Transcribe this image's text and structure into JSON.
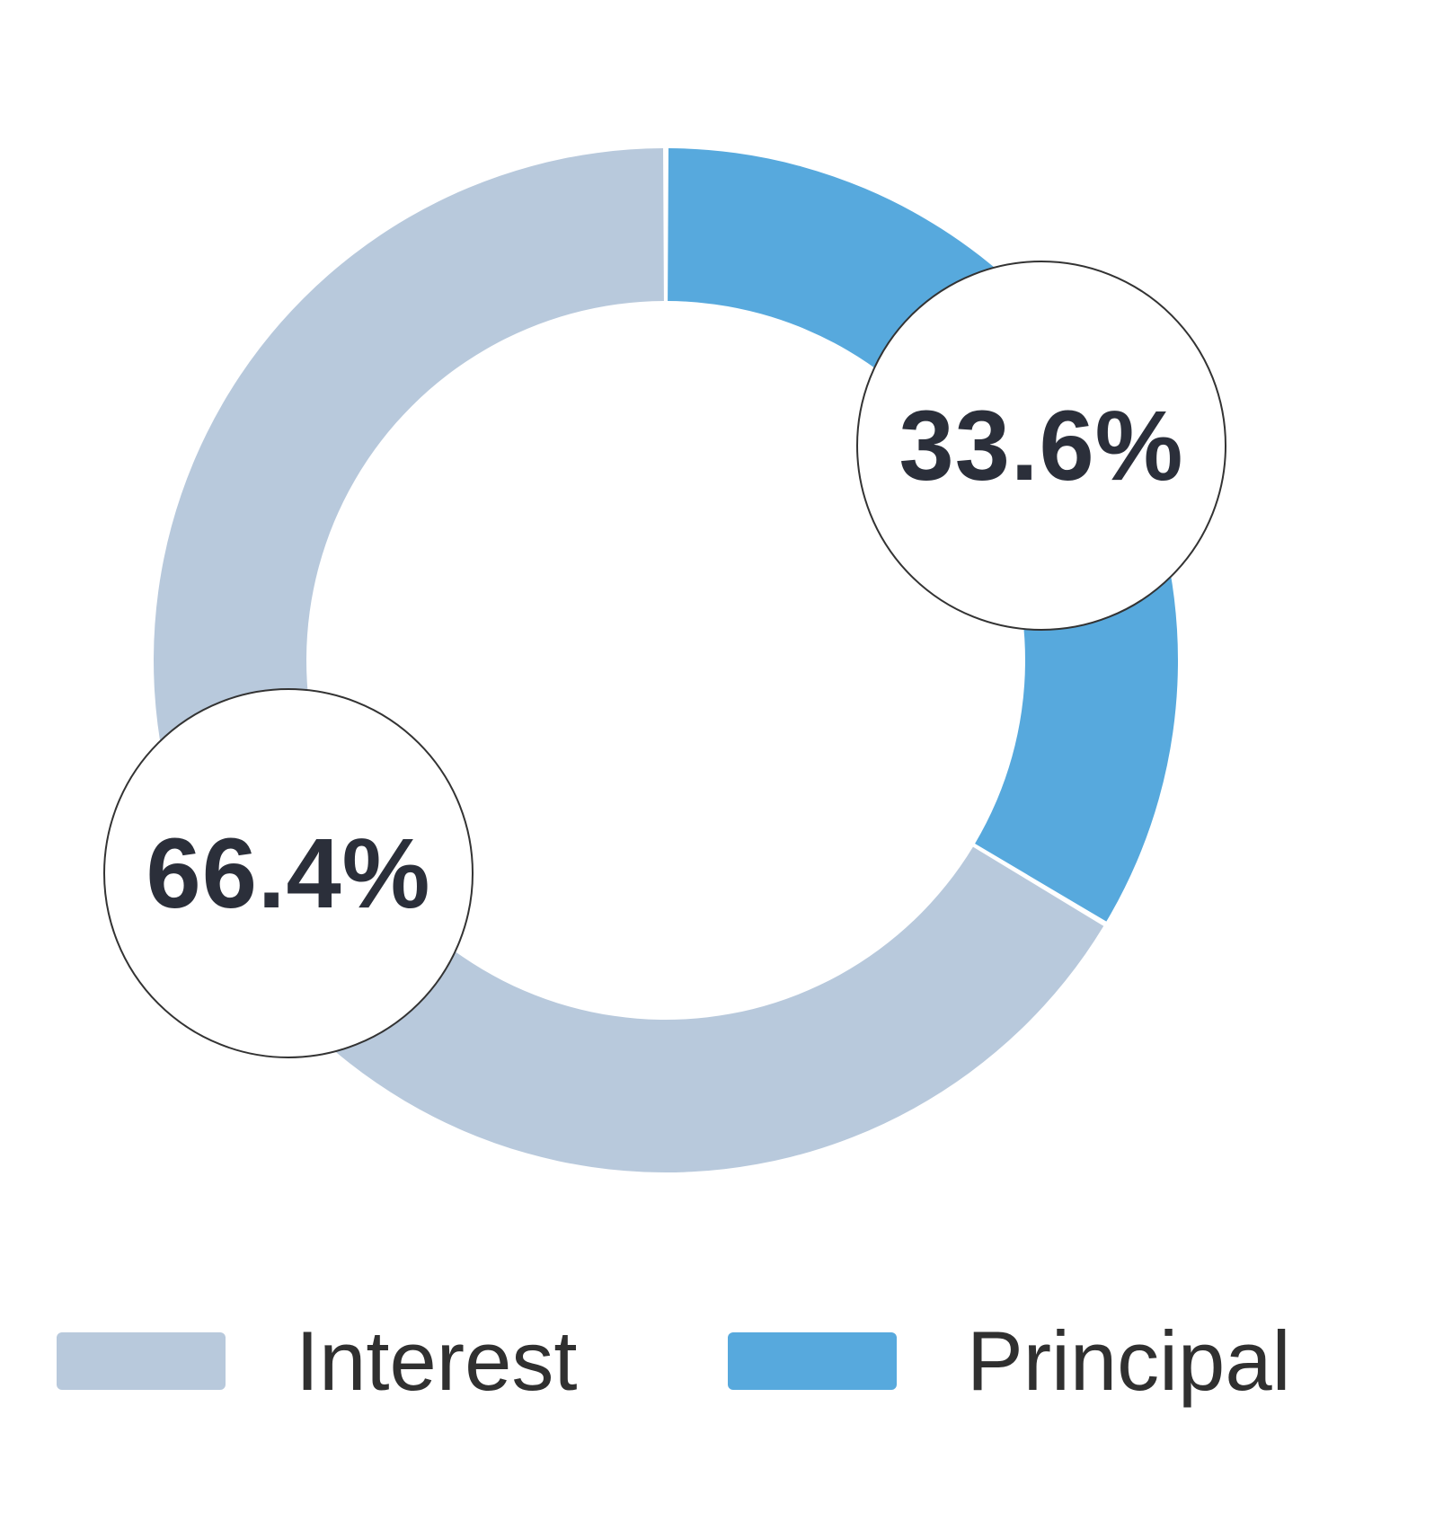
{
  "chart_data": {
    "type": "pie",
    "subtype": "donut",
    "title": "",
    "slices": [
      {
        "label": "Interest",
        "value": 66.4,
        "display": "66.4%",
        "color": "#b8c9dc"
      },
      {
        "label": "Principal",
        "value": 33.6,
        "display": "33.6%",
        "color": "#57a9dd"
      }
    ],
    "clockwise_order": [
      1,
      0
    ],
    "start_angle": "top",
    "hole": 0.7,
    "legend_position": "bottom",
    "annotation_style": "circled-percentage-callouts"
  },
  "colors": {
    "background": "#ffffff",
    "label_text": "#2b2f3a",
    "legend_text": "#303030",
    "callout_border": "#333333"
  }
}
